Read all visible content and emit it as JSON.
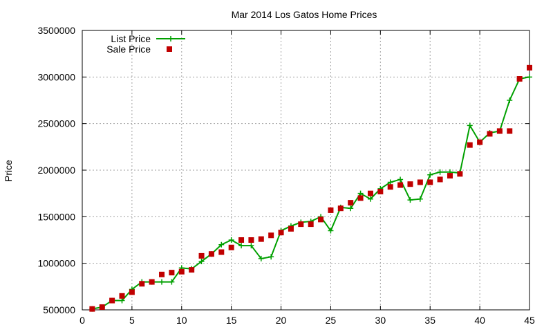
{
  "chart_data": {
    "type": "line",
    "title": "Mar 2014 Los Gatos Home Prices",
    "xlabel": "",
    "ylabel": "Price",
    "xlim": [
      0,
      45
    ],
    "ylim": [
      500000,
      3500000
    ],
    "x_ticks": [
      0,
      5,
      10,
      15,
      20,
      25,
      30,
      35,
      40,
      45
    ],
    "y_ticks": [
      500000,
      1000000,
      1500000,
      2000000,
      2500000,
      3000000,
      3500000
    ],
    "grid": true,
    "legend_position": "top-left",
    "x": [
      1,
      2,
      3,
      4,
      5,
      6,
      7,
      8,
      9,
      10,
      11,
      12,
      13,
      14,
      15,
      16,
      17,
      18,
      19,
      20,
      21,
      22,
      23,
      24,
      25,
      26,
      27,
      28,
      29,
      30,
      31,
      32,
      33,
      34,
      35,
      36,
      37,
      38,
      39,
      40,
      41,
      42,
      43,
      44,
      45
    ],
    "series": [
      {
        "name": "List Price",
        "style": "line-with-plus-markers",
        "color": "#00a000",
        "values": [
          510000,
          530000,
          600000,
          600000,
          720000,
          800000,
          800000,
          800000,
          800000,
          950000,
          940000,
          1020000,
          1100000,
          1200000,
          1250000,
          1190000,
          1190000,
          1050000,
          1070000,
          1350000,
          1400000,
          1440000,
          1450000,
          1500000,
          1350000,
          1600000,
          1590000,
          1750000,
          1690000,
          1800000,
          1870000,
          1900000,
          1680000,
          1690000,
          1950000,
          1980000,
          1980000,
          1970000,
          2480000,
          2300000,
          2400000,
          2420000,
          2750000,
          2980000,
          3000000
        ]
      },
      {
        "name": "Sale Price",
        "style": "square-markers",
        "color": "#c00000",
        "values": [
          510000,
          530000,
          600000,
          650000,
          690000,
          780000,
          800000,
          880000,
          900000,
          910000,
          930000,
          1080000,
          1100000,
          1120000,
          1170000,
          1250000,
          1250000,
          1260000,
          1300000,
          1330000,
          1370000,
          1420000,
          1420000,
          1470000,
          1570000,
          1590000,
          1650000,
          1700000,
          1750000,
          1770000,
          1820000,
          1840000,
          1850000,
          1870000,
          1870000,
          1900000,
          1940000,
          1960000,
          2270000,
          2300000,
          2390000,
          2420000,
          2420000,
          2980000,
          3100000
        ]
      }
    ]
  }
}
